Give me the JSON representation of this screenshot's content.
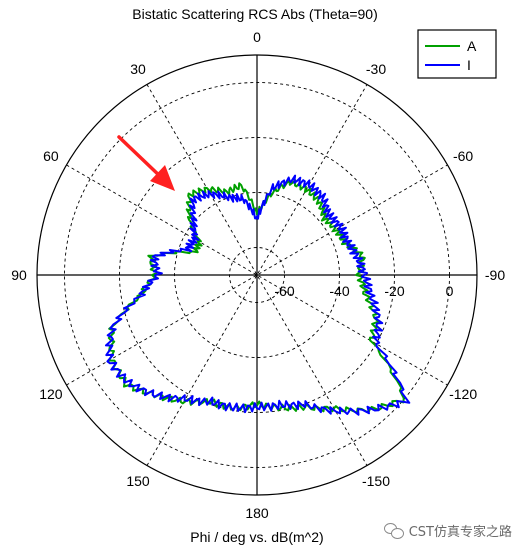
{
  "chart_data": {
    "type": "polar-line",
    "title": "Bistatic Scattering RCS Abs (Theta=90)",
    "xlabel": "Phi / deg vs. dB(m^2)",
    "angle_tick_labels": [
      "0",
      "-30",
      "-60",
      "-90",
      "-120",
      "-150",
      "180",
      "150",
      "120",
      "90",
      "60",
      "30"
    ],
    "radial_tick_labels": [
      "-60",
      "-40",
      "-20",
      "0"
    ],
    "radial_range_db": [
      -70,
      10
    ],
    "grid": true,
    "legend_position": "top-right",
    "series": [
      {
        "name": "A",
        "color": "#00a000",
        "phi_deg": [
          0,
          10,
          20,
          30,
          40,
          50,
          60,
          70,
          80,
          90,
          100,
          110,
          120,
          130,
          140,
          150,
          160,
          170,
          180,
          190,
          200,
          210,
          220,
          230,
          240,
          250,
          260,
          270,
          280,
          290,
          300,
          310,
          320,
          330,
          340,
          350
        ],
        "rcs_db": [
          -48,
          -37,
          -38,
          -34,
          -32,
          -38,
          -46,
          -46,
          -31,
          -33,
          -27,
          -14,
          -9,
          -8,
          -13,
          -17,
          -21,
          -21,
          -23,
          -21,
          -19,
          -14,
          -6,
          0,
          -22,
          -24,
          -30,
          -33,
          -31,
          -36,
          -37,
          -38,
          -35,
          -34,
          -34,
          -40
        ]
      },
      {
        "name": "I",
        "color": "#0000ff",
        "phi_deg": [
          0,
          10,
          20,
          30,
          40,
          50,
          60,
          70,
          80,
          90,
          100,
          110,
          120,
          130,
          140,
          150,
          160,
          170,
          180,
          190,
          200,
          210,
          220,
          230,
          240,
          250,
          260,
          270,
          280,
          290,
          300,
          310,
          320,
          330,
          340,
          350
        ],
        "rcs_db": [
          -50,
          -42,
          -40,
          -36,
          -34,
          -40,
          -44,
          -43,
          -32,
          -34,
          -27,
          -14,
          -8,
          -9,
          -13,
          -18,
          -21,
          -21,
          -22,
          -22,
          -20,
          -13,
          -6,
          1,
          -20,
          -23,
          -28,
          -31,
          -33,
          -35,
          -35,
          -36,
          -33,
          -32,
          -33,
          -38
        ]
      }
    ]
  },
  "watermark": {
    "text": "CST仿真专家之路",
    "icon": "wechat-icon"
  },
  "annotation": {
    "icon": "red-arrow-icon",
    "color": "#ff2020"
  }
}
